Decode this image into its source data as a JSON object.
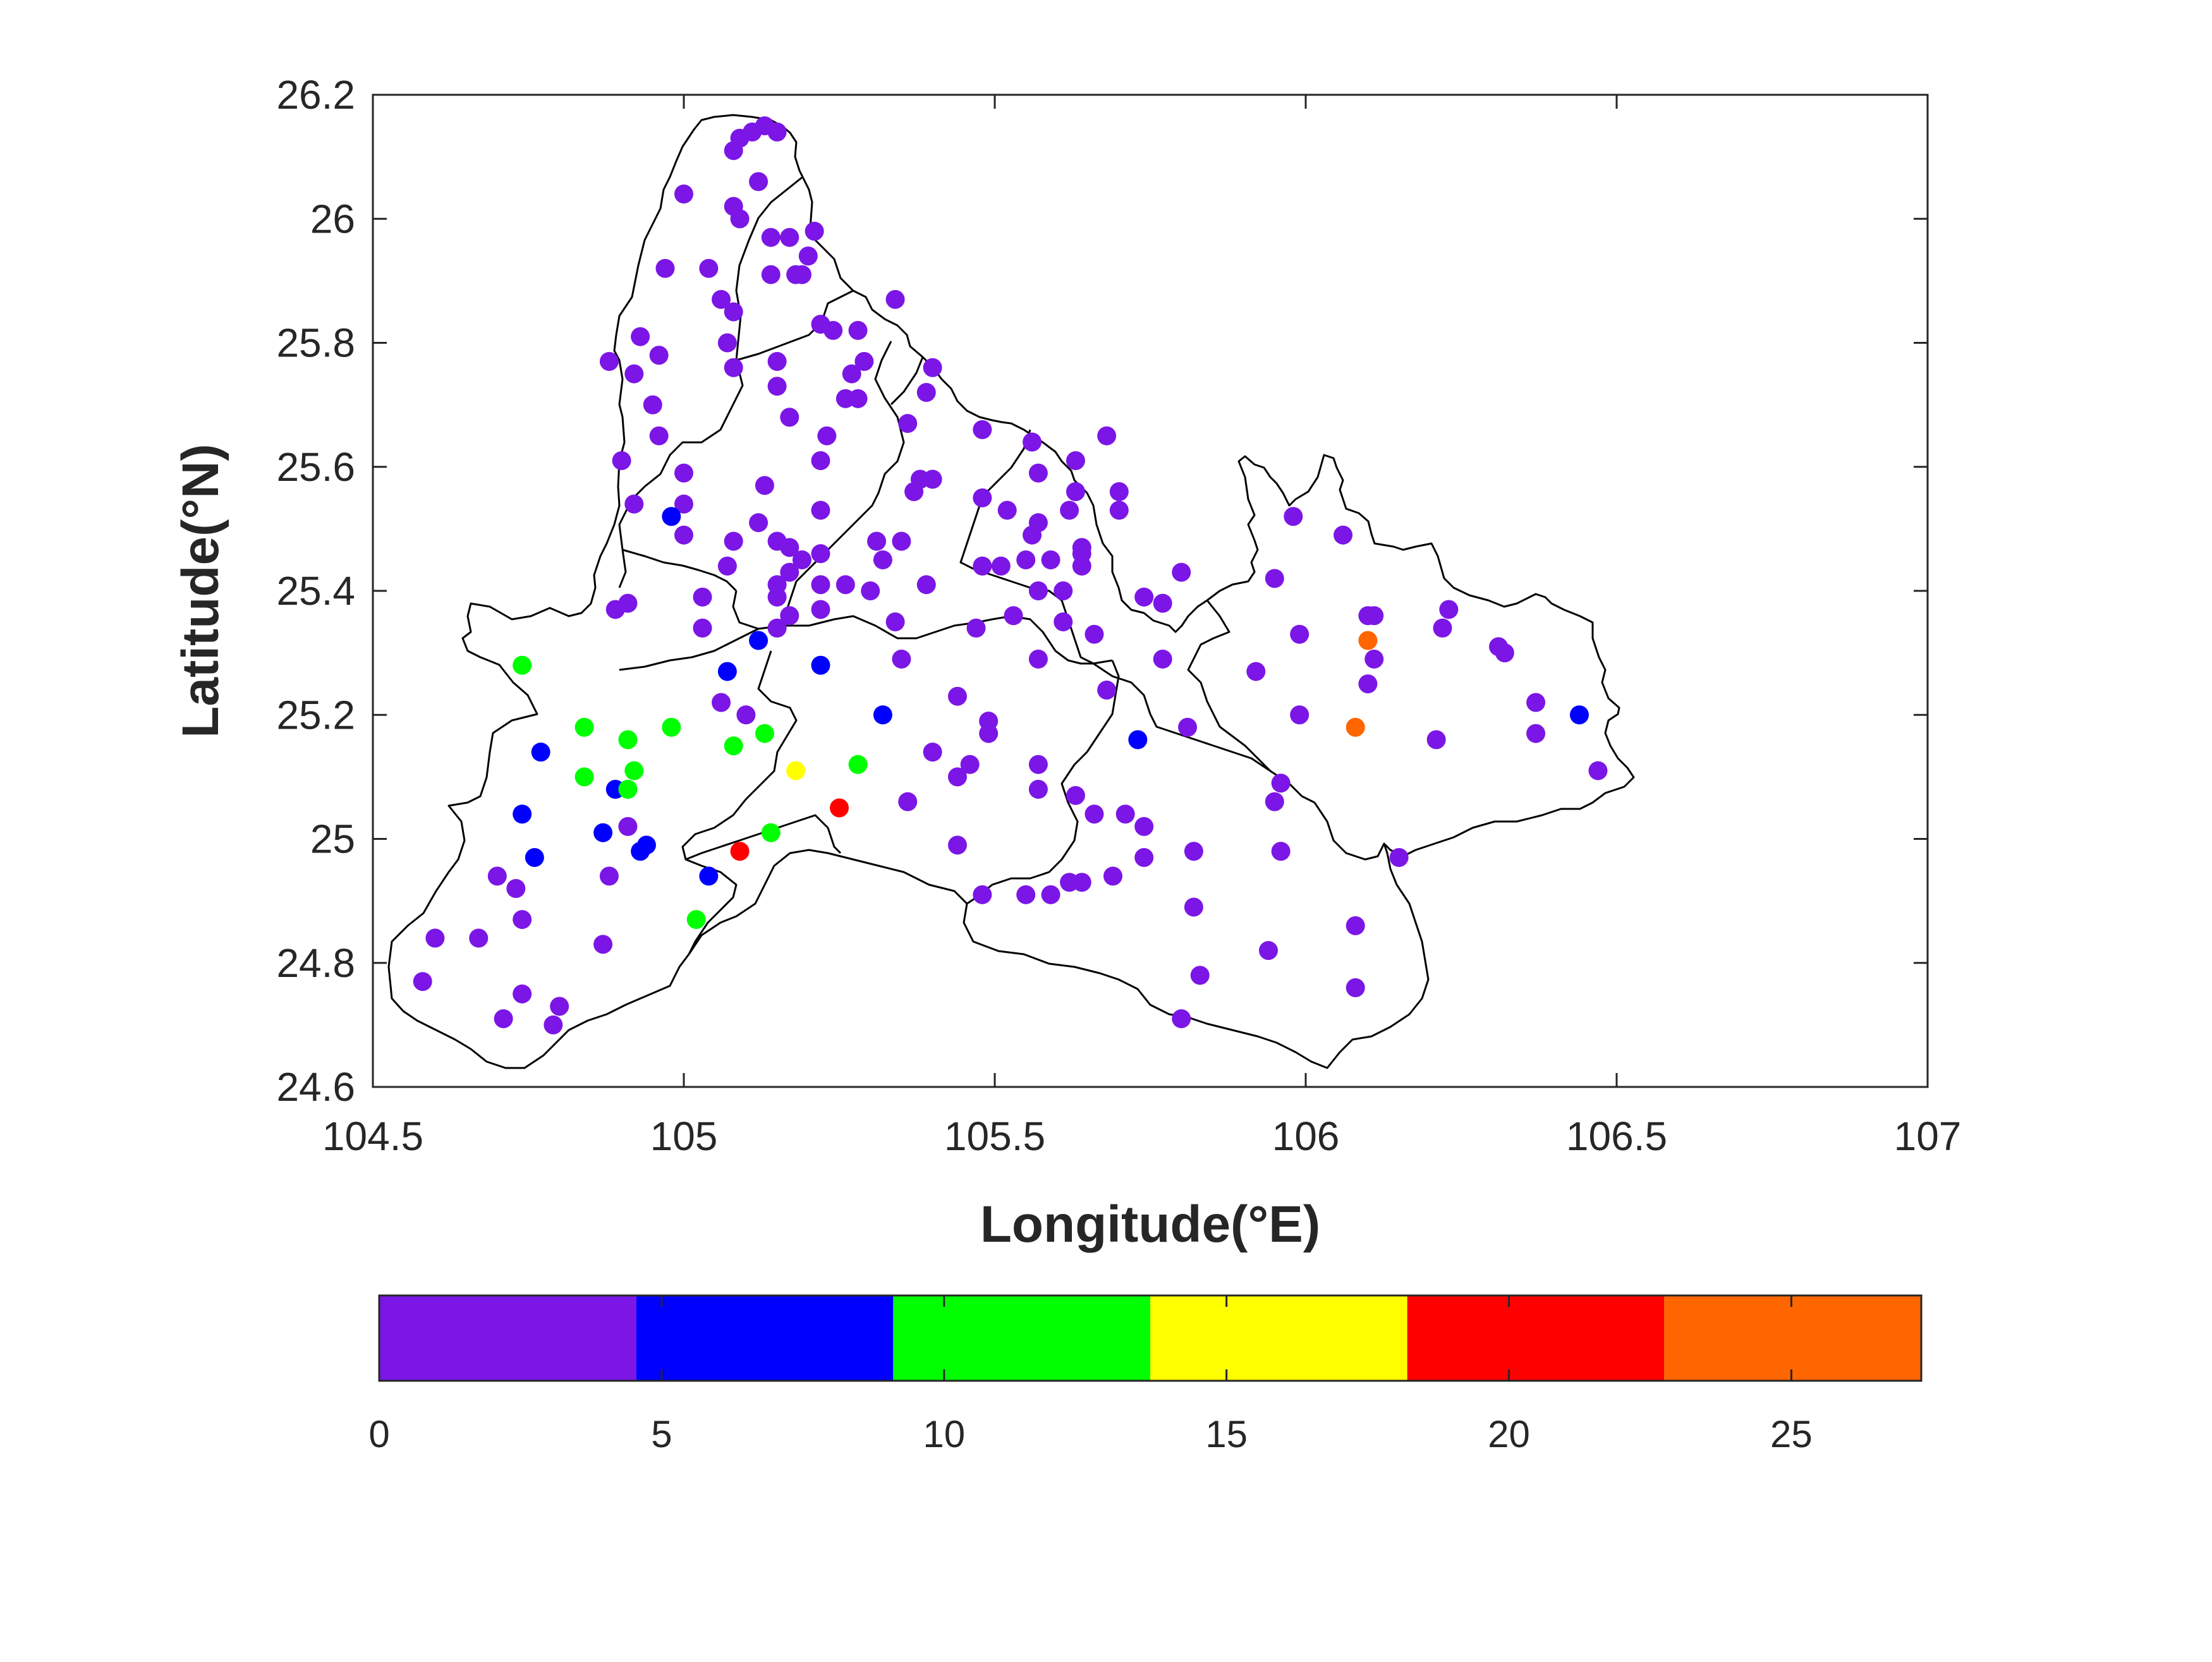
{
  "chart_data": {
    "type": "scatter",
    "title": "",
    "xlabel": "Longitude(°E)",
    "ylabel": "Latitude(°N)",
    "xlim": [
      104.5,
      107
    ],
    "ylim": [
      24.6,
      26.2
    ],
    "x_ticks": [
      "104.5",
      "105",
      "105.5",
      "106",
      "106.5",
      "107"
    ],
    "y_ticks": [
      "24.6",
      "24.8",
      "25",
      "25.2",
      "25.4",
      "25.6",
      "25.8",
      "26",
      "26.2"
    ],
    "grid": false,
    "colorbar": {
      "location": "bottom",
      "range": [
        0,
        27.3
      ],
      "bin_edges": [
        0,
        4.55,
        9.1,
        13.65,
        18.2,
        22.75,
        27.3
      ],
      "colors": [
        "#7b16e6",
        "#0000ff",
        "#00ff00",
        "#ffff00",
        "#ff0000",
        "#ff6600"
      ],
      "tick_values": [
        0,
        5,
        10,
        15,
        20,
        25
      ],
      "tick_labels": [
        "0",
        "5",
        "10",
        "15",
        "20",
        "25"
      ]
    },
    "background_map": "county boundary outlines",
    "points": {
      "purple_0_to_4.5": [
        [
          105.13,
          26.15
        ],
        [
          105.11,
          26.14
        ],
        [
          105.15,
          26.14
        ],
        [
          105.09,
          26.13
        ],
        [
          105.08,
          26.11
        ],
        [
          105.12,
          26.06
        ],
        [
          105.0,
          26.04
        ],
        [
          105.08,
          26.02
        ],
        [
          105.09,
          26.0
        ],
        [
          105.14,
          25.97
        ],
        [
          105.17,
          25.97
        ],
        [
          105.21,
          25.98
        ],
        [
          105.2,
          25.94
        ],
        [
          104.97,
          25.92
        ],
        [
          105.04,
          25.92
        ],
        [
          105.14,
          25.91
        ],
        [
          105.18,
          25.91
        ],
        [
          105.19,
          25.91
        ],
        [
          105.08,
          25.85
        ],
        [
          105.06,
          25.87
        ],
        [
          105.34,
          25.87
        ],
        [
          105.22,
          25.83
        ],
        [
          105.24,
          25.82
        ],
        [
          105.28,
          25.82
        ],
        [
          104.93,
          25.81
        ],
        [
          104.96,
          25.78
        ],
        [
          105.07,
          25.8
        ],
        [
          104.88,
          25.77
        ],
        [
          104.92,
          25.75
        ],
        [
          105.08,
          25.76
        ],
        [
          105.15,
          25.77
        ],
        [
          105.29,
          25.77
        ],
        [
          105.27,
          25.75
        ],
        [
          105.15,
          25.73
        ],
        [
          105.26,
          25.71
        ],
        [
          105.28,
          25.71
        ],
        [
          105.4,
          25.76
        ],
        [
          105.39,
          25.72
        ],
        [
          104.95,
          25.7
        ],
        [
          105.17,
          25.68
        ],
        [
          105.36,
          25.67
        ],
        [
          104.96,
          25.65
        ],
        [
          105.23,
          25.65
        ],
        [
          105.48,
          25.66
        ],
        [
          105.56,
          25.64
        ],
        [
          105.68,
          25.65
        ],
        [
          104.9,
          25.61
        ],
        [
          105.22,
          25.61
        ],
        [
          105.63,
          25.61
        ],
        [
          105.0,
          25.59
        ],
        [
          105.57,
          25.59
        ],
        [
          105.38,
          25.58
        ],
        [
          105.4,
          25.58
        ],
        [
          105.13,
          25.57
        ],
        [
          105.37,
          25.56
        ],
        [
          105.63,
          25.56
        ],
        [
          105.7,
          25.56
        ],
        [
          104.92,
          25.54
        ],
        [
          105.0,
          25.54
        ],
        [
          105.22,
          25.53
        ],
        [
          105.48,
          25.55
        ],
        [
          105.52,
          25.53
        ],
        [
          105.62,
          25.53
        ],
        [
          105.7,
          25.53
        ],
        [
          105.98,
          25.52
        ],
        [
          105.12,
          25.51
        ],
        [
          105.57,
          25.51
        ],
        [
          105.56,
          25.49
        ],
        [
          106.06,
          25.49
        ],
        [
          105.0,
          25.49
        ],
        [
          105.08,
          25.48
        ],
        [
          105.15,
          25.48
        ],
        [
          105.31,
          25.48
        ],
        [
          105.35,
          25.48
        ],
        [
          105.17,
          25.47
        ],
        [
          105.22,
          25.46
        ],
        [
          105.64,
          25.47
        ],
        [
          105.64,
          25.46
        ],
        [
          105.19,
          25.45
        ],
        [
          105.55,
          25.45
        ],
        [
          105.59,
          25.45
        ],
        [
          105.07,
          25.44
        ],
        [
          105.17,
          25.43
        ],
        [
          105.48,
          25.44
        ],
        [
          105.51,
          25.44
        ],
        [
          105.64,
          25.44
        ],
        [
          105.32,
          25.45
        ],
        [
          105.8,
          25.43
        ],
        [
          105.95,
          25.42
        ],
        [
          105.15,
          25.41
        ],
        [
          105.22,
          25.41
        ],
        [
          105.26,
          25.41
        ],
        [
          105.39,
          25.41
        ],
        [
          105.03,
          25.39
        ],
        [
          105.15,
          25.39
        ],
        [
          105.3,
          25.4
        ],
        [
          105.57,
          25.4
        ],
        [
          105.61,
          25.4
        ],
        [
          105.74,
          25.39
        ],
        [
          105.77,
          25.38
        ],
        [
          104.89,
          25.37
        ],
        [
          104.91,
          25.38
        ],
        [
          105.22,
          25.37
        ],
        [
          105.17,
          25.36
        ],
        [
          105.53,
          25.36
        ],
        [
          106.1,
          25.36
        ],
        [
          106.11,
          25.36
        ],
        [
          106.23,
          25.37
        ],
        [
          105.15,
          25.34
        ],
        [
          105.03,
          25.34
        ],
        [
          105.34,
          25.35
        ],
        [
          105.47,
          25.34
        ],
        [
          105.61,
          25.35
        ],
        [
          105.66,
          25.33
        ],
        [
          105.99,
          25.33
        ],
        [
          106.22,
          25.34
        ],
        [
          106.31,
          25.31
        ],
        [
          106.32,
          25.3
        ],
        [
          105.35,
          25.29
        ],
        [
          105.57,
          25.29
        ],
        [
          105.77,
          25.29
        ],
        [
          106.11,
          25.29
        ],
        [
          105.92,
          25.27
        ],
        [
          106.1,
          25.25
        ],
        [
          105.68,
          25.24
        ],
        [
          105.44,
          25.23
        ],
        [
          105.06,
          25.22
        ],
        [
          106.37,
          25.22
        ],
        [
          105.1,
          25.2
        ],
        [
          105.49,
          25.19
        ],
        [
          105.99,
          25.2
        ],
        [
          105.49,
          25.17
        ],
        [
          105.81,
          25.18
        ],
        [
          106.21,
          25.16
        ],
        [
          106.37,
          25.17
        ],
        [
          105.4,
          25.14
        ],
        [
          105.57,
          25.12
        ],
        [
          105.46,
          25.12
        ],
        [
          105.44,
          25.1
        ],
        [
          106.47,
          25.11
        ],
        [
          105.96,
          25.09
        ],
        [
          105.57,
          25.08
        ],
        [
          105.36,
          25.06
        ],
        [
          105.63,
          25.07
        ],
        [
          105.95,
          25.06
        ],
        [
          105.66,
          25.04
        ],
        [
          105.71,
          25.04
        ],
        [
          105.74,
          25.02
        ],
        [
          104.91,
          25.02
        ],
        [
          105.44,
          24.99
        ],
        [
          105.74,
          24.97
        ],
        [
          105.82,
          24.98
        ],
        [
          105.96,
          24.98
        ],
        [
          106.15,
          24.97
        ],
        [
          104.7,
          24.94
        ],
        [
          104.88,
          24.94
        ],
        [
          104.73,
          24.92
        ],
        [
          105.48,
          24.91
        ],
        [
          105.55,
          24.91
        ],
        [
          105.59,
          24.91
        ],
        [
          105.64,
          24.93
        ],
        [
          105.62,
          24.93
        ],
        [
          105.69,
          24.94
        ],
        [
          105.82,
          24.89
        ],
        [
          104.74,
          24.87
        ],
        [
          106.08,
          24.86
        ],
        [
          104.6,
          24.84
        ],
        [
          104.67,
          24.84
        ],
        [
          104.87,
          24.83
        ],
        [
          105.94,
          24.82
        ],
        [
          104.58,
          24.77
        ],
        [
          105.83,
          24.78
        ],
        [
          104.74,
          24.75
        ],
        [
          106.08,
          24.76
        ],
        [
          104.8,
          24.73
        ],
        [
          104.71,
          24.71
        ],
        [
          104.79,
          24.7
        ],
        [
          105.8,
          24.71
        ]
      ],
      "blue_4.5_to_9.1": [
        [
          104.98,
          25.52
        ],
        [
          105.12,
          25.32
        ],
        [
          105.07,
          25.27
        ],
        [
          105.22,
          25.28
        ],
        [
          105.32,
          25.2
        ],
        [
          106.44,
          25.2
        ],
        [
          105.73,
          25.16
        ],
        [
          104.77,
          25.14
        ],
        [
          104.89,
          25.08
        ],
        [
          104.74,
          25.04
        ],
        [
          104.87,
          25.01
        ],
        [
          104.76,
          24.97
        ],
        [
          104.94,
          24.99
        ],
        [
          104.93,
          24.98
        ],
        [
          105.04,
          24.94
        ]
      ],
      "green_9.1_to_13.65": [
        [
          104.74,
          25.28
        ],
        [
          104.84,
          25.18
        ],
        [
          104.98,
          25.18
        ],
        [
          104.91,
          25.16
        ],
        [
          105.08,
          25.15
        ],
        [
          105.13,
          25.17
        ],
        [
          104.92,
          25.11
        ],
        [
          105.28,
          25.12
        ],
        [
          104.84,
          25.1
        ],
        [
          104.91,
          25.08
        ],
        [
          105.14,
          25.01
        ],
        [
          105.02,
          24.87
        ]
      ],
      "yellow_13.65_to_18.2": [
        [
          105.18,
          25.11
        ]
      ],
      "red_18.2_to_22.75": [
        [
          105.25,
          25.05
        ],
        [
          105.09,
          24.98
        ]
      ],
      "orange_22.75_to_27.3": [
        [
          106.1,
          25.32
        ],
        [
          106.08,
          25.18
        ]
      ]
    }
  }
}
